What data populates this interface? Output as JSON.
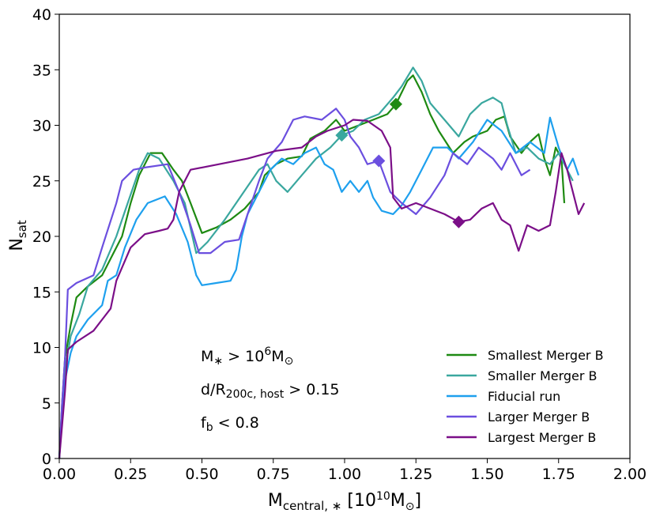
{
  "chart_data": {
    "type": "line",
    "title": "",
    "xlabel": "M_central,* [10^10 M_sun]",
    "ylabel": "N_sat",
    "xlim": [
      0.0,
      2.0
    ],
    "ylim": [
      0,
      40
    ],
    "grid": false,
    "legend_position": "bottom-right",
    "xticks": [
      "0.00",
      "0.25",
      "0.50",
      "0.75",
      "1.00",
      "1.25",
      "1.50",
      "1.75",
      "2.00"
    ],
    "yticks": [
      "0",
      "5",
      "10",
      "15",
      "20",
      "25",
      "30",
      "35",
      "40"
    ],
    "annotations": [
      "M* > 10^6 M_sun",
      "d/R_200c,host > 0.15",
      "f_b < 0.8"
    ],
    "series": [
      {
        "name": "Smallest Merger B",
        "color": "#1e8a12",
        "marker": {
          "x": 1.18,
          "y": 31.9
        },
        "points": [
          [
            0,
            0
          ],
          [
            0.01,
            5
          ],
          [
            0.02,
            9
          ],
          [
            0.04,
            12
          ],
          [
            0.06,
            14.5
          ],
          [
            0.1,
            15.5
          ],
          [
            0.15,
            16.5
          ],
          [
            0.18,
            18
          ],
          [
            0.22,
            20
          ],
          [
            0.25,
            23
          ],
          [
            0.28,
            25.5
          ],
          [
            0.32,
            27.5
          ],
          [
            0.36,
            27.5
          ],
          [
            0.4,
            26
          ],
          [
            0.43,
            25
          ],
          [
            0.46,
            23
          ],
          [
            0.5,
            20.3
          ],
          [
            0.55,
            20.8
          ],
          [
            0.6,
            21.5
          ],
          [
            0.65,
            22.5
          ],
          [
            0.7,
            24
          ],
          [
            0.72,
            25.5
          ],
          [
            0.76,
            26.5
          ],
          [
            0.8,
            27
          ],
          [
            0.85,
            27.2
          ],
          [
            0.88,
            28.8
          ],
          [
            0.93,
            29.5
          ],
          [
            0.97,
            30.5
          ],
          [
            1.0,
            29.5
          ],
          [
            1.05,
            30
          ],
          [
            1.1,
            30.5
          ],
          [
            1.15,
            31
          ],
          [
            1.18,
            31.9
          ],
          [
            1.22,
            34
          ],
          [
            1.24,
            34.5
          ],
          [
            1.27,
            33
          ],
          [
            1.3,
            31
          ],
          [
            1.33,
            29.5
          ],
          [
            1.38,
            27.5
          ],
          [
            1.42,
            28.5
          ],
          [
            1.45,
            29
          ],
          [
            1.5,
            29.5
          ],
          [
            1.53,
            30.5
          ],
          [
            1.56,
            30.8
          ],
          [
            1.58,
            29
          ],
          [
            1.62,
            27.5
          ],
          [
            1.65,
            28.5
          ],
          [
            1.68,
            29.2
          ],
          [
            1.7,
            27
          ],
          [
            1.72,
            25.5
          ],
          [
            1.74,
            28
          ],
          [
            1.76,
            27
          ],
          [
            1.77,
            23
          ]
        ]
      },
      {
        "name": "Smaller Merger B",
        "color": "#3aa79f",
        "marker": {
          "x": 0.99,
          "y": 29.1
        },
        "points": [
          [
            0,
            0
          ],
          [
            0.01,
            4
          ],
          [
            0.02,
            8
          ],
          [
            0.04,
            11
          ],
          [
            0.07,
            13
          ],
          [
            0.1,
            15.5
          ],
          [
            0.15,
            17
          ],
          [
            0.2,
            20
          ],
          [
            0.24,
            23
          ],
          [
            0.28,
            26
          ],
          [
            0.31,
            27.5
          ],
          [
            0.35,
            27
          ],
          [
            0.4,
            25
          ],
          [
            0.44,
            23
          ],
          [
            0.48,
            18.5
          ],
          [
            0.52,
            19.5
          ],
          [
            0.58,
            21.5
          ],
          [
            0.62,
            23
          ],
          [
            0.66,
            24.5
          ],
          [
            0.7,
            26
          ],
          [
            0.73,
            26.5
          ],
          [
            0.76,
            25
          ],
          [
            0.8,
            24
          ],
          [
            0.85,
            25.5
          ],
          [
            0.9,
            27
          ],
          [
            0.95,
            28
          ],
          [
            0.99,
            29.1
          ],
          [
            1.03,
            29.5
          ],
          [
            1.07,
            30.5
          ],
          [
            1.12,
            31
          ],
          [
            1.17,
            32.5
          ],
          [
            1.2,
            33.5
          ],
          [
            1.24,
            35.2
          ],
          [
            1.27,
            34
          ],
          [
            1.3,
            32
          ],
          [
            1.35,
            30.5
          ],
          [
            1.4,
            29
          ],
          [
            1.44,
            31
          ],
          [
            1.48,
            32
          ],
          [
            1.52,
            32.5
          ],
          [
            1.55,
            32
          ],
          [
            1.57,
            30
          ],
          [
            1.6,
            27.5
          ],
          [
            1.64,
            28
          ],
          [
            1.68,
            27
          ],
          [
            1.72,
            26.5
          ],
          [
            1.75,
            27.5
          ],
          [
            1.78,
            26
          ],
          [
            1.8,
            25
          ]
        ]
      },
      {
        "name": "Fiducial run",
        "color": "#1ea0ee",
        "marker": null,
        "points": [
          [
            0,
            0
          ],
          [
            0.01,
            4
          ],
          [
            0.02,
            7
          ],
          [
            0.04,
            9.5
          ],
          [
            0.06,
            11
          ],
          [
            0.1,
            12.5
          ],
          [
            0.15,
            13.8
          ],
          [
            0.17,
            16
          ],
          [
            0.2,
            16.5
          ],
          [
            0.23,
            19
          ],
          [
            0.27,
            21.5
          ],
          [
            0.31,
            23
          ],
          [
            0.37,
            23.6
          ],
          [
            0.41,
            22
          ],
          [
            0.45,
            19.5
          ],
          [
            0.48,
            16.5
          ],
          [
            0.5,
            15.6
          ],
          [
            0.55,
            15.8
          ],
          [
            0.6,
            16
          ],
          [
            0.62,
            17
          ],
          [
            0.64,
            20
          ],
          [
            0.66,
            22
          ],
          [
            0.7,
            24
          ],
          [
            0.74,
            26
          ],
          [
            0.78,
            27
          ],
          [
            0.82,
            26.5
          ],
          [
            0.86,
            27.5
          ],
          [
            0.9,
            28
          ],
          [
            0.93,
            26.5
          ],
          [
            0.96,
            26
          ],
          [
            0.99,
            24
          ],
          [
            1.02,
            25
          ],
          [
            1.05,
            24
          ],
          [
            1.08,
            25
          ],
          [
            1.1,
            23.5
          ],
          [
            1.13,
            22.3
          ],
          [
            1.17,
            22
          ],
          [
            1.2,
            22.8
          ],
          [
            1.23,
            24
          ],
          [
            1.27,
            26
          ],
          [
            1.31,
            28
          ],
          [
            1.36,
            28
          ],
          [
            1.4,
            27
          ],
          [
            1.45,
            28.5
          ],
          [
            1.5,
            30.5
          ],
          [
            1.55,
            29.5
          ],
          [
            1.6,
            27.5
          ],
          [
            1.65,
            28.5
          ],
          [
            1.7,
            27.5
          ],
          [
            1.72,
            30.7
          ],
          [
            1.75,
            28
          ],
          [
            1.78,
            26
          ],
          [
            1.8,
            27
          ],
          [
            1.82,
            25.5
          ]
        ]
      },
      {
        "name": "Larger Merger B",
        "color": "#6b4fdf",
        "marker": {
          "x": 1.12,
          "y": 26.8
        },
        "points": [
          [
            0,
            0
          ],
          [
            0.01,
            5
          ],
          [
            0.02,
            9
          ],
          [
            0.03,
            15.2
          ],
          [
            0.06,
            15.8
          ],
          [
            0.12,
            16.5
          ],
          [
            0.15,
            19
          ],
          [
            0.2,
            23
          ],
          [
            0.22,
            25
          ],
          [
            0.26,
            26
          ],
          [
            0.3,
            26.2
          ],
          [
            0.38,
            26.5
          ],
          [
            0.42,
            24
          ],
          [
            0.46,
            21
          ],
          [
            0.49,
            18.5
          ],
          [
            0.53,
            18.5
          ],
          [
            0.58,
            19.5
          ],
          [
            0.63,
            19.7
          ],
          [
            0.66,
            22
          ],
          [
            0.7,
            25
          ],
          [
            0.73,
            27
          ],
          [
            0.78,
            28.5
          ],
          [
            0.82,
            30.5
          ],
          [
            0.86,
            30.8
          ],
          [
            0.92,
            30.5
          ],
          [
            0.97,
            31.5
          ],
          [
            1.0,
            30.5
          ],
          [
            1.02,
            29
          ],
          [
            1.05,
            28
          ],
          [
            1.08,
            26.5
          ],
          [
            1.12,
            26.8
          ],
          [
            1.16,
            24
          ],
          [
            1.2,
            23
          ],
          [
            1.25,
            22
          ],
          [
            1.3,
            23.5
          ],
          [
            1.35,
            25.5
          ],
          [
            1.38,
            27.5
          ],
          [
            1.43,
            26.5
          ],
          [
            1.47,
            28
          ],
          [
            1.52,
            27
          ],
          [
            1.55,
            26
          ],
          [
            1.58,
            27.5
          ],
          [
            1.62,
            25.5
          ],
          [
            1.65,
            26
          ]
        ]
      },
      {
        "name": "Largest Merger B",
        "color": "#7b0f88",
        "marker": {
          "x": 1.4,
          "y": 21.3
        },
        "points": [
          [
            0,
            0
          ],
          [
            0.01,
            3
          ],
          [
            0.02,
            6
          ],
          [
            0.03,
            9.8
          ],
          [
            0.06,
            10.5
          ],
          [
            0.12,
            11.5
          ],
          [
            0.18,
            13.5
          ],
          [
            0.2,
            16
          ],
          [
            0.25,
            19
          ],
          [
            0.3,
            20.2
          ],
          [
            0.35,
            20.5
          ],
          [
            0.38,
            20.7
          ],
          [
            0.4,
            21.5
          ],
          [
            0.42,
            24
          ],
          [
            0.46,
            26
          ],
          [
            0.56,
            26.5
          ],
          [
            0.66,
            27
          ],
          [
            0.76,
            27.7
          ],
          [
            0.85,
            28
          ],
          [
            0.9,
            29
          ],
          [
            0.94,
            29.5
          ],
          [
            1.0,
            30
          ],
          [
            1.03,
            30.5
          ],
          [
            1.08,
            30.4
          ],
          [
            1.13,
            29.5
          ],
          [
            1.16,
            28
          ],
          [
            1.17,
            23.5
          ],
          [
            1.2,
            22.5
          ],
          [
            1.25,
            23
          ],
          [
            1.3,
            22.5
          ],
          [
            1.35,
            22
          ],
          [
            1.4,
            21.3
          ],
          [
            1.44,
            21.5
          ],
          [
            1.48,
            22.5
          ],
          [
            1.52,
            23
          ],
          [
            1.55,
            21.5
          ],
          [
            1.58,
            21
          ],
          [
            1.61,
            18.7
          ],
          [
            1.64,
            21
          ],
          [
            1.68,
            20.5
          ],
          [
            1.72,
            21
          ],
          [
            1.74,
            24
          ],
          [
            1.76,
            27.5
          ],
          [
            1.78,
            26
          ],
          [
            1.8,
            24
          ],
          [
            1.82,
            22
          ],
          [
            1.84,
            23
          ]
        ]
      }
    ]
  }
}
